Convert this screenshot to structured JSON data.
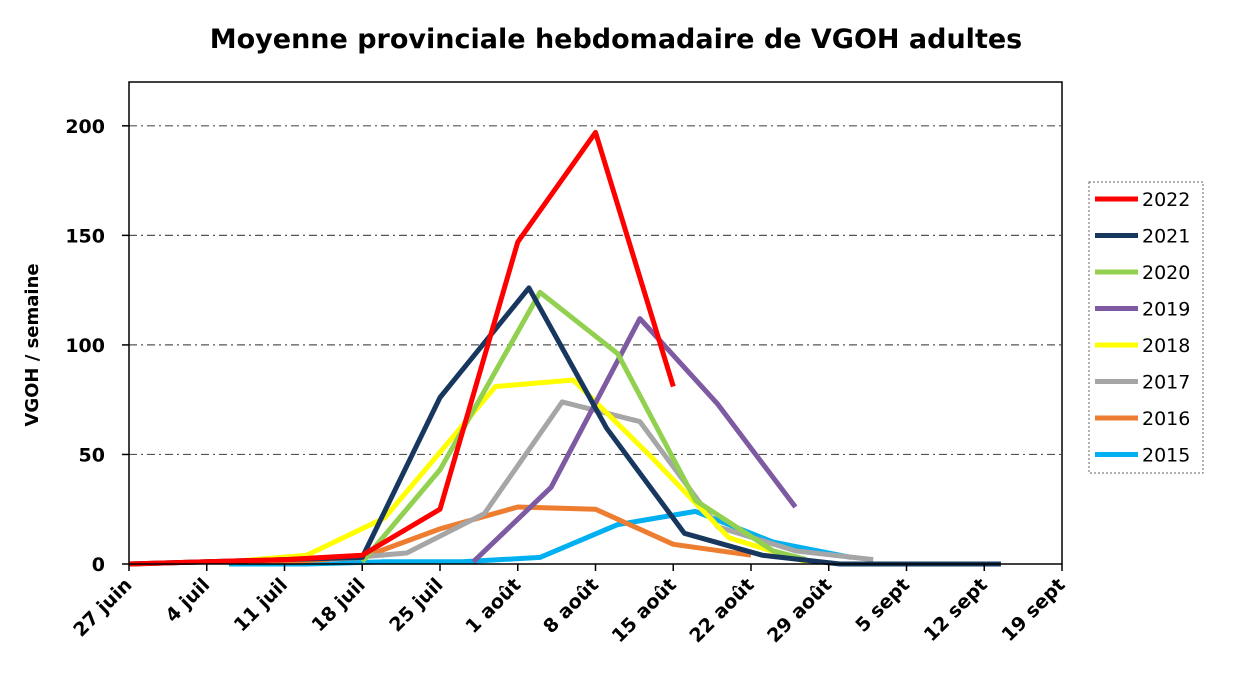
{
  "chart_data": {
    "type": "line",
    "title": "Moyenne provinciale hebdomadaire de VGOH adultes",
    "xlabel": "",
    "ylabel": "VGOH / semaine",
    "x_tick_labels": [
      "27 juin",
      "4 juil",
      "11 juil",
      "18 juil",
      "25 juil",
      "1 août",
      "8 août",
      "15 août",
      "22 août",
      "29 août",
      "5 sept",
      "12 sept",
      "19 sept"
    ],
    "x_unit": "days since 27 juin",
    "xlim": [
      0,
      84
    ],
    "ylim": [
      0,
      200
    ],
    "y_ticks": [
      0,
      50,
      100,
      150,
      200
    ],
    "grid": true,
    "legend_position": "right",
    "series": [
      {
        "name": "2022",
        "color": "#ff0000",
        "points": [
          [
            0,
            0
          ],
          [
            7,
            1
          ],
          [
            14,
            2
          ],
          [
            21,
            4
          ],
          [
            28,
            25
          ],
          [
            35,
            147
          ],
          [
            42,
            197
          ],
          [
            49,
            81
          ]
        ]
      },
      {
        "name": "2021",
        "color": "#17375e",
        "points": [
          [
            0,
            0
          ],
          [
            7,
            1
          ],
          [
            14,
            2
          ],
          [
            21,
            3
          ],
          [
            28,
            76
          ],
          [
            36,
            126
          ],
          [
            43,
            62
          ],
          [
            50,
            14
          ],
          [
            57,
            4
          ],
          [
            64,
            0
          ],
          [
            71,
            0
          ],
          [
            78,
            0
          ],
          [
            78.5,
            0
          ]
        ]
      },
      {
        "name": "2020",
        "color": "#92d050",
        "points": [
          [
            21,
            1
          ],
          [
            28,
            43
          ],
          [
            37,
            124
          ],
          [
            44,
            96
          ],
          [
            51,
            29
          ],
          [
            58,
            6
          ],
          [
            61,
            2
          ]
        ]
      },
      {
        "name": "2019",
        "color": "#7e5aa2",
        "points": [
          [
            31,
            1
          ],
          [
            38,
            35
          ],
          [
            46,
            112
          ],
          [
            53,
            73
          ],
          [
            60,
            26
          ]
        ]
      },
      {
        "name": "2018",
        "color": "#ffff00",
        "points": [
          [
            9,
            1
          ],
          [
            16,
            4
          ],
          [
            23,
            21
          ],
          [
            33,
            81
          ],
          [
            40,
            84
          ],
          [
            47,
            49
          ],
          [
            54,
            12
          ],
          [
            61,
            1
          ]
        ]
      },
      {
        "name": "2017",
        "color": "#a6a6a6",
        "points": [
          [
            18,
            2
          ],
          [
            25,
            5
          ],
          [
            32,
            23
          ],
          [
            39,
            74
          ],
          [
            46,
            65
          ],
          [
            53,
            17
          ],
          [
            60,
            6
          ],
          [
            67,
            2
          ]
        ]
      },
      {
        "name": "2016",
        "color": "#ed7d31",
        "points": [
          [
            0,
            0
          ],
          [
            7,
            1
          ],
          [
            14,
            1
          ],
          [
            21,
            3
          ],
          [
            28,
            16
          ],
          [
            35,
            26
          ],
          [
            42,
            25
          ],
          [
            49,
            9
          ],
          [
            56,
            4
          ]
        ]
      },
      {
        "name": "2015",
        "color": "#00b0f0",
        "points": [
          [
            9,
            0
          ],
          [
            16,
            0
          ],
          [
            23,
            1
          ],
          [
            30,
            1
          ],
          [
            37,
            3
          ],
          [
            44,
            18
          ],
          [
            51,
            24
          ],
          [
            58,
            10
          ],
          [
            65,
            3
          ]
        ]
      }
    ]
  }
}
